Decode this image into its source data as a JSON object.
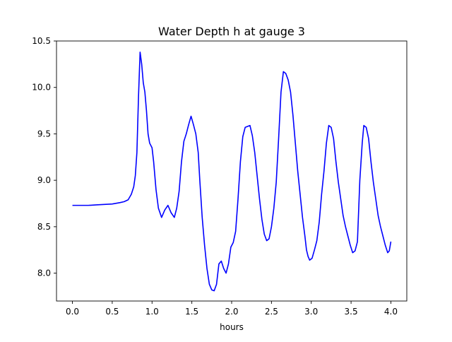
{
  "chart_data": {
    "type": "line",
    "title": "Water Depth h at gauge 3",
    "xlabel": "hours",
    "ylabel": "",
    "xlim": [
      -0.2,
      4.2
    ],
    "ylim": [
      7.7,
      10.5
    ],
    "xticks": [
      0.0,
      0.5,
      1.0,
      1.5,
      2.0,
      2.5,
      3.0,
      3.5,
      4.0
    ],
    "xtick_labels": [
      "0.0",
      "0.5",
      "1.0",
      "1.5",
      "2.0",
      "2.5",
      "3.0",
      "3.5",
      "4.0"
    ],
    "yticks": [
      8.0,
      8.5,
      9.0,
      9.5,
      10.0,
      10.5
    ],
    "ytick_labels": [
      "8.0",
      "8.5",
      "9.0",
      "9.5",
      "10.0",
      "10.5"
    ],
    "grid": false,
    "legend": "none",
    "series": [
      {
        "color": "#0000ff",
        "x": [
          0.0,
          0.1,
          0.2,
          0.3,
          0.4,
          0.5,
          0.6,
          0.65,
          0.7,
          0.74,
          0.77,
          0.79,
          0.81,
          0.83,
          0.85,
          0.87,
          0.89,
          0.91,
          0.93,
          0.95,
          0.97,
          1.0,
          1.02,
          1.05,
          1.08,
          1.12,
          1.16,
          1.2,
          1.24,
          1.28,
          1.31,
          1.34,
          1.37,
          1.4,
          1.43,
          1.46,
          1.49,
          1.52,
          1.55,
          1.58,
          1.6,
          1.63,
          1.66,
          1.69,
          1.72,
          1.75,
          1.78,
          1.81,
          1.84,
          1.87,
          1.9,
          1.93,
          1.96,
          1.99,
          2.02,
          2.05,
          2.08,
          2.11,
          2.14,
          2.17,
          2.2,
          2.23,
          2.26,
          2.29,
          2.32,
          2.35,
          2.38,
          2.41,
          2.44,
          2.47,
          2.5,
          2.53,
          2.56,
          2.59,
          2.62,
          2.65,
          2.68,
          2.71,
          2.74,
          2.77,
          2.8,
          2.83,
          2.86,
          2.89,
          2.92,
          2.94,
          2.96,
          2.98,
          3.01,
          3.04,
          3.07,
          3.1,
          3.13,
          3.16,
          3.19,
          3.22,
          3.25,
          3.28,
          3.31,
          3.34,
          3.37,
          3.4,
          3.43,
          3.46,
          3.49,
          3.52,
          3.55,
          3.58,
          3.61,
          3.64,
          3.66,
          3.69,
          3.72,
          3.75,
          3.78,
          3.81,
          3.84,
          3.87,
          3.9,
          3.93,
          3.96,
          3.98,
          4.0
        ],
        "y": [
          8.73,
          8.73,
          8.73,
          8.735,
          8.74,
          8.745,
          8.76,
          8.77,
          8.79,
          8.85,
          8.93,
          9.05,
          9.3,
          9.9,
          10.38,
          10.25,
          10.05,
          9.95,
          9.75,
          9.5,
          9.4,
          9.35,
          9.2,
          8.9,
          8.7,
          8.6,
          8.68,
          8.73,
          8.65,
          8.6,
          8.7,
          8.88,
          9.2,
          9.42,
          9.5,
          9.6,
          9.69,
          9.6,
          9.5,
          9.3,
          9.0,
          8.6,
          8.3,
          8.05,
          7.88,
          7.82,
          7.81,
          7.88,
          8.1,
          8.13,
          8.05,
          8.0,
          8.1,
          8.28,
          8.33,
          8.45,
          8.8,
          9.2,
          9.47,
          9.57,
          9.58,
          9.59,
          9.48,
          9.3,
          9.05,
          8.8,
          8.58,
          8.42,
          8.35,
          8.37,
          8.5,
          8.7,
          8.98,
          9.45,
          9.95,
          10.17,
          10.15,
          10.08,
          9.95,
          9.7,
          9.4,
          9.1,
          8.85,
          8.6,
          8.4,
          8.25,
          8.18,
          8.14,
          8.16,
          8.25,
          8.35,
          8.55,
          8.85,
          9.1,
          9.4,
          9.59,
          9.57,
          9.45,
          9.2,
          8.98,
          8.8,
          8.62,
          8.5,
          8.4,
          8.3,
          8.22,
          8.24,
          8.34,
          9.0,
          9.4,
          9.59,
          9.57,
          9.45,
          9.2,
          8.98,
          8.8,
          8.62,
          8.5,
          8.4,
          8.3,
          8.22,
          8.24,
          8.34
        ]
      }
    ]
  }
}
